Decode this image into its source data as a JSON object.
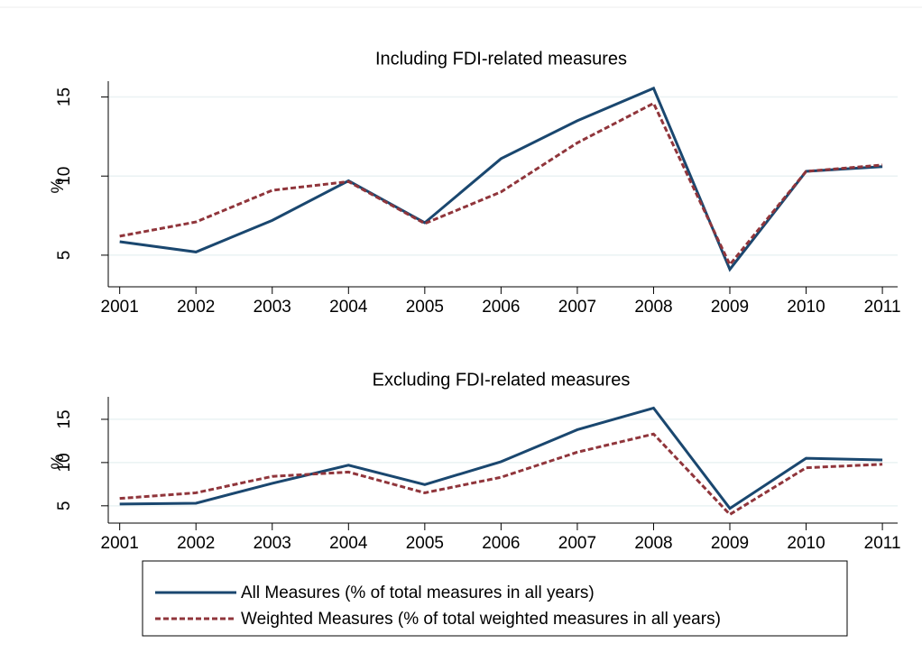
{
  "chart_data": [
    {
      "type": "line",
      "title": "Including FDI-related measures",
      "ylabel": "%",
      "x": [
        2001,
        2002,
        2003,
        2004,
        2005,
        2006,
        2007,
        2008,
        2009,
        2010,
        2011
      ],
      "xlim": [
        2000.85,
        2011.2
      ],
      "xticks": [
        2001,
        2002,
        2003,
        2004,
        2005,
        2006,
        2007,
        2008,
        2009,
        2010,
        2011
      ],
      "ylim": [
        3,
        16
      ],
      "yticks": [
        5,
        10,
        15
      ],
      "grid": true,
      "series": [
        {
          "name": "All Measures (% of total measures in all years)",
          "color": "#1a476f",
          "dash": false,
          "values": [
            5.85,
            5.2,
            7.2,
            9.7,
            7.05,
            11.1,
            13.5,
            15.55,
            4.1,
            10.3,
            10.6
          ]
        },
        {
          "name": "Weighted Measures (% of total weighted measures in all years)",
          "color": "#90353b",
          "dash": true,
          "values": [
            6.2,
            7.1,
            9.1,
            9.65,
            7.0,
            9.0,
            12.1,
            14.6,
            4.4,
            10.3,
            10.7
          ]
        }
      ]
    },
    {
      "type": "line",
      "title": "Excluding FDI-related measures",
      "ylabel": "%",
      "x": [
        2001,
        2002,
        2003,
        2004,
        2005,
        2006,
        2007,
        2008,
        2009,
        2010,
        2011
      ],
      "xlim": [
        2000.85,
        2011.2
      ],
      "xticks": [
        2001,
        2002,
        2003,
        2004,
        2005,
        2006,
        2007,
        2008,
        2009,
        2010,
        2011
      ],
      "ylim": [
        3,
        17.6
      ],
      "yticks": [
        5,
        10,
        15
      ],
      "grid": true,
      "series": [
        {
          "color": "#1a476f",
          "dash": false,
          "values": [
            5.2,
            5.3,
            7.6,
            9.7,
            7.45,
            10.1,
            13.8,
            16.3,
            4.7,
            10.5,
            10.3
          ]
        },
        {
          "color": "#90353b",
          "dash": true,
          "values": [
            5.85,
            6.5,
            8.4,
            8.9,
            6.5,
            8.3,
            11.2,
            13.3,
            4.0,
            9.4,
            9.8
          ]
        }
      ]
    }
  ]
}
